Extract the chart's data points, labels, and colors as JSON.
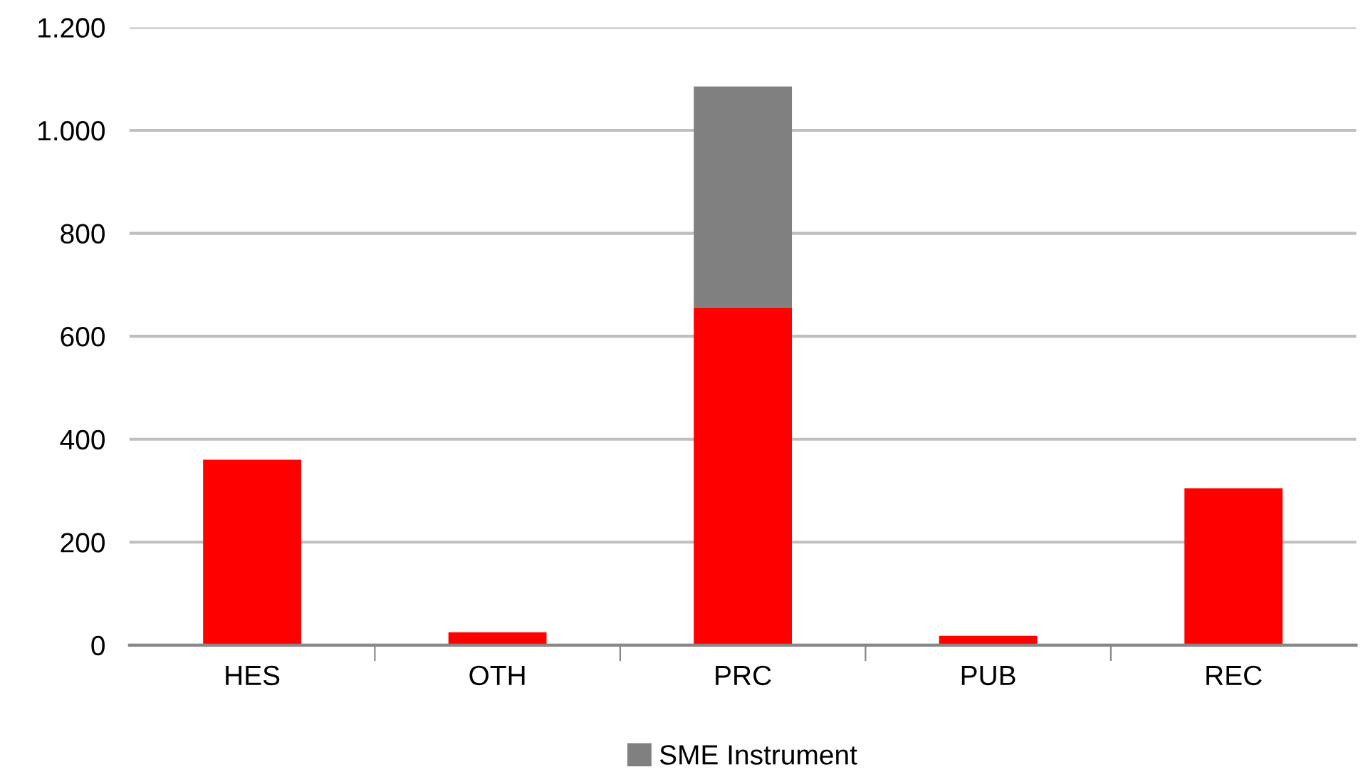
{
  "chart_data": {
    "type": "bar",
    "stacked": true,
    "categories": [
      "HES",
      "OTH",
      "PRC",
      "PUB",
      "REC"
    ],
    "series": [
      {
        "color": "#ff0000",
        "values": [
          360,
          25,
          656,
          18,
          305
        ]
      },
      {
        "name": "SME Instrument",
        "color": "#808080",
        "values": [
          null,
          null,
          429,
          null,
          null
        ]
      }
    ],
    "ylim": [
      0,
      1200
    ],
    "yticks": [
      0,
      200,
      400,
      600,
      800,
      {
        "value": 1000,
        "label": "1.000"
      },
      {
        "value": 1200,
        "label": "1.200"
      }
    ],
    "grid": "y",
    "legend": "bottom"
  }
}
